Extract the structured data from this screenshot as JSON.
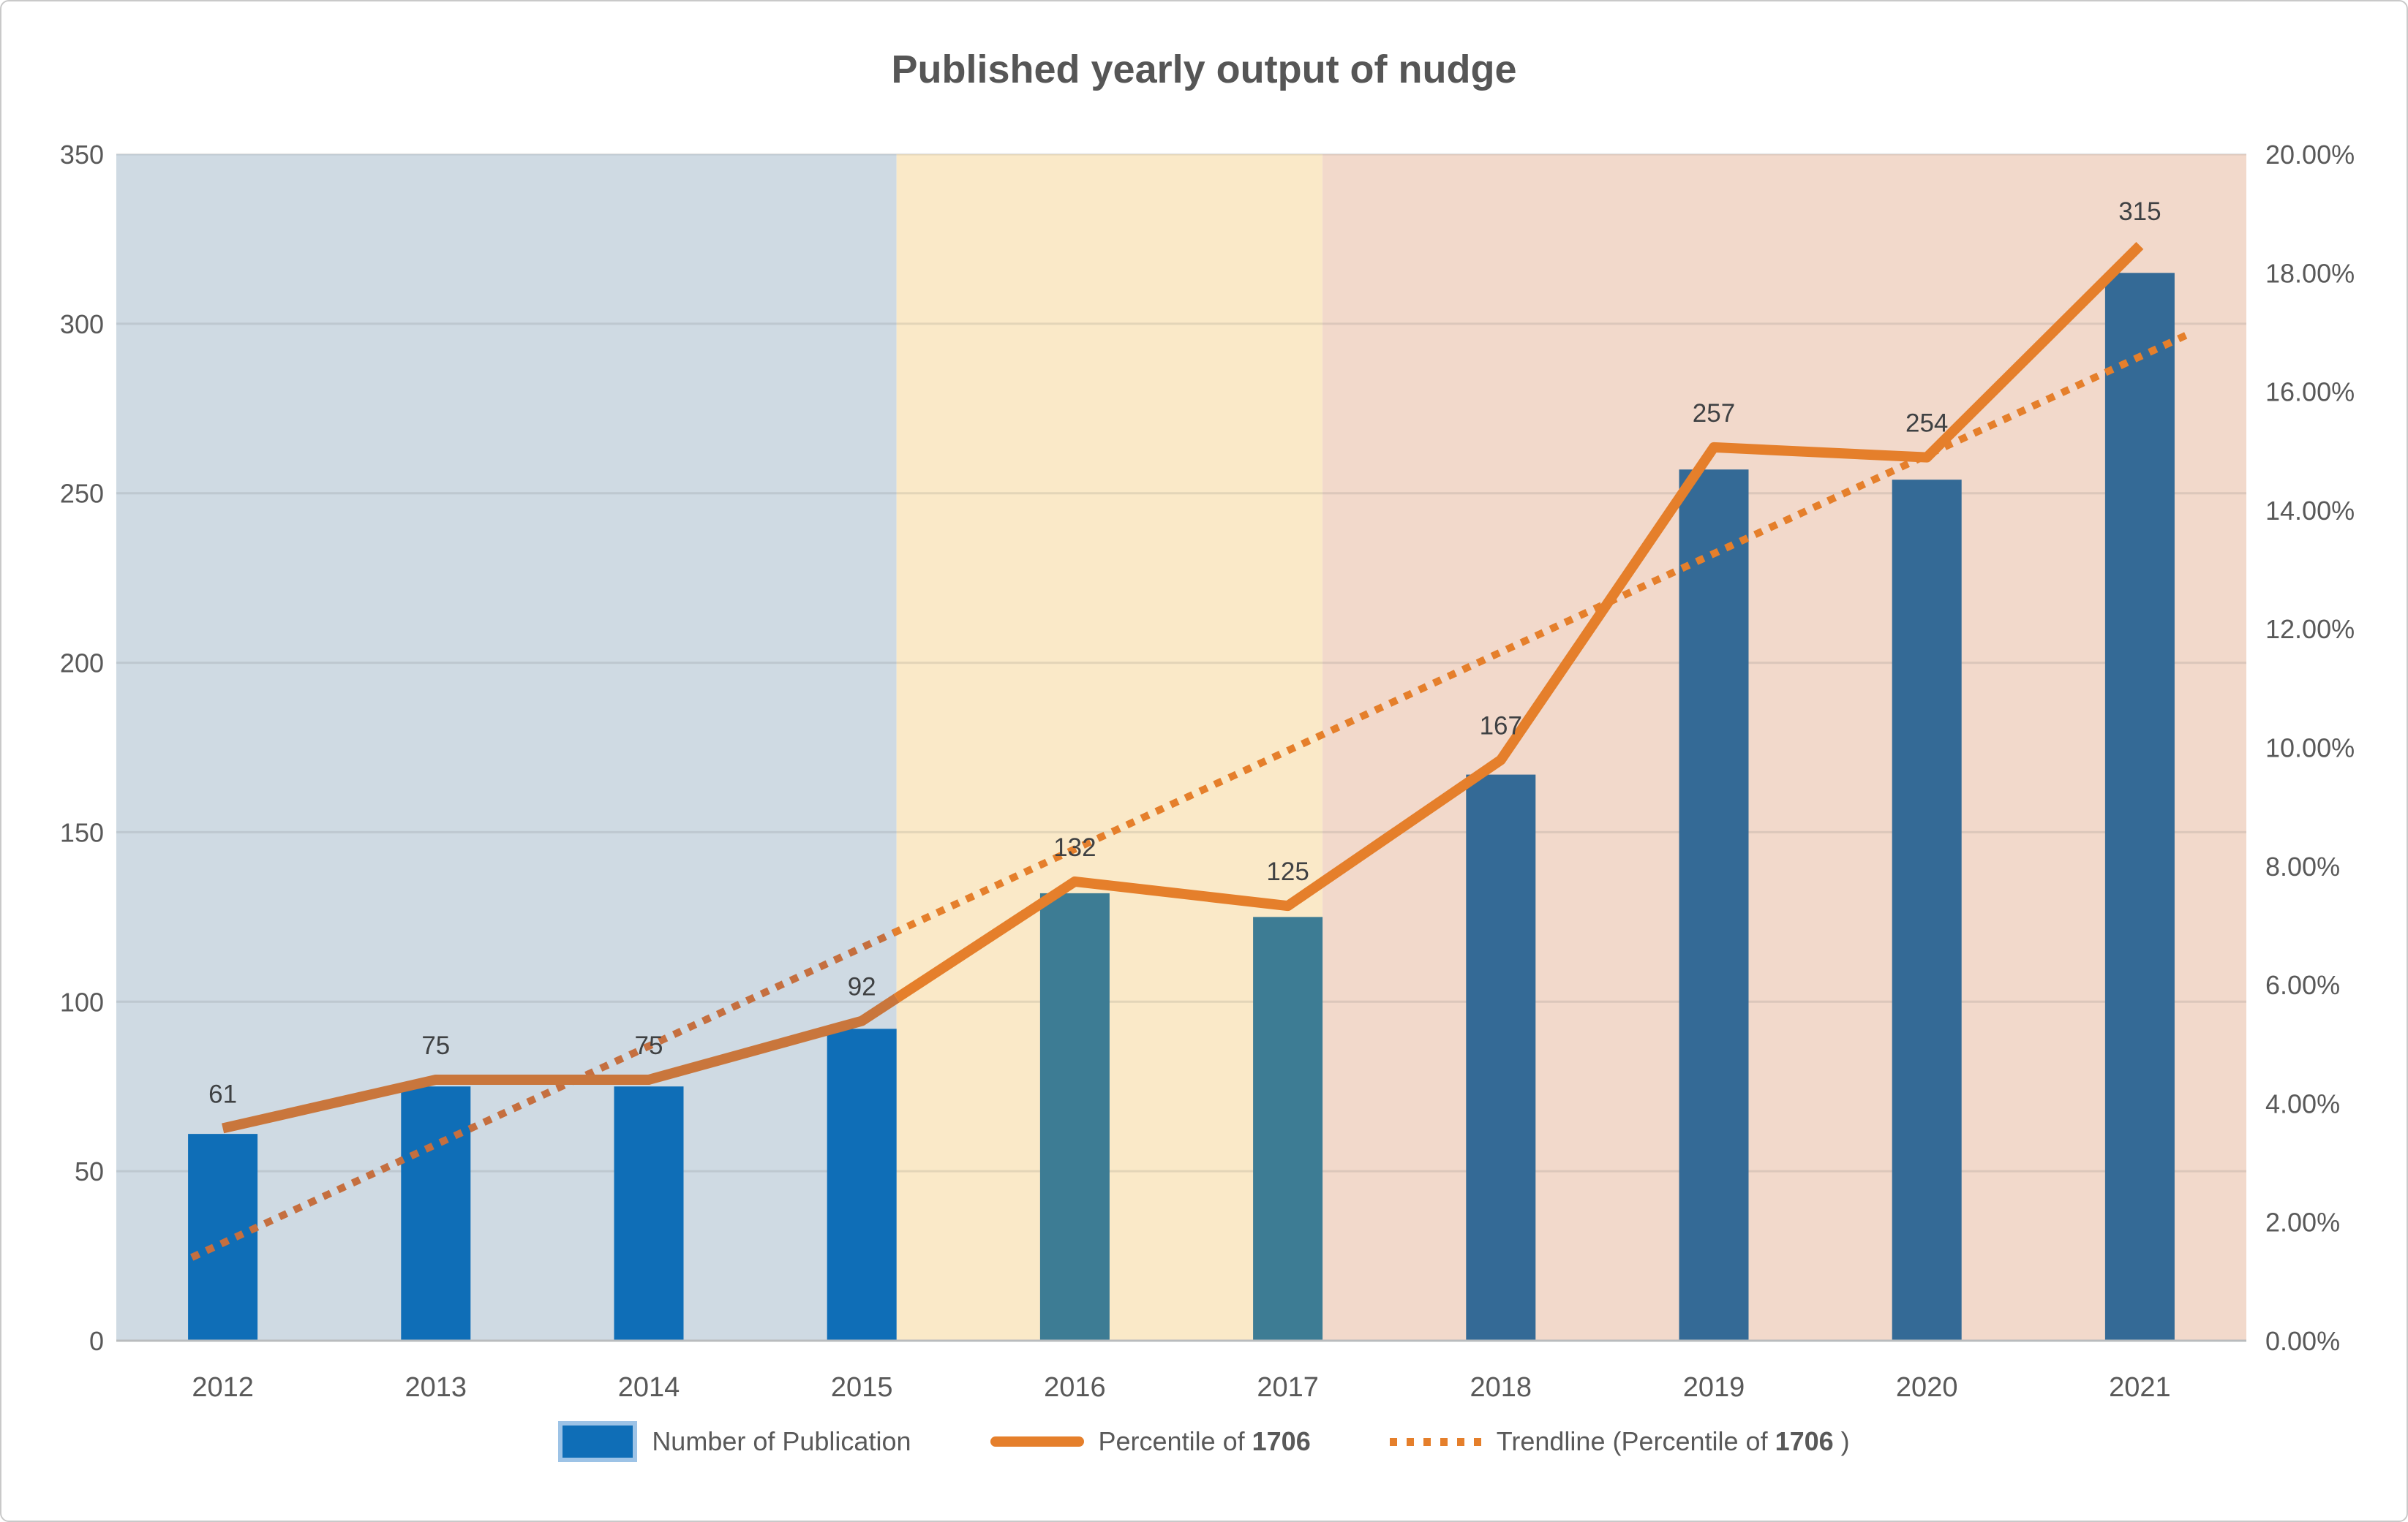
{
  "title": "Published yearly output of nudge",
  "legend": {
    "items": [
      {
        "label": "Number of Publication"
      },
      {
        "prefix": "Percentile of ",
        "bold": "1706",
        "suffix": ""
      },
      {
        "prefix": "Trendline (Percentile of ",
        "bold": "1706",
        "suffix": " )"
      }
    ]
  },
  "chart_data": {
    "type": "combo-bar-line",
    "title": "Published yearly output of nudge",
    "categories": [
      "2012",
      "2013",
      "2014",
      "2015",
      "2016",
      "2017",
      "2018",
      "2019",
      "2020",
      "2021"
    ],
    "series": [
      {
        "name": "Number of Publication",
        "type": "bar",
        "axis": "left",
        "values": [
          61,
          75,
          75,
          92,
          132,
          125,
          167,
          257,
          254,
          315
        ]
      },
      {
        "name": "Percentile of 1706",
        "type": "line",
        "axis": "right",
        "values_pct": [
          3.58,
          4.4,
          4.4,
          5.39,
          7.74,
          7.33,
          9.79,
          15.06,
          14.89,
          18.46
        ]
      },
      {
        "name": "Trendline (Percentile of 1706 )",
        "type": "trendline-dotted",
        "axis": "right",
        "start_slot": -0.13,
        "start_pct": 1.43,
        "end_slot": 9.2,
        "end_pct": 16.92
      }
    ],
    "bar_value_labels": [
      "61",
      "75",
      "75",
      "92",
      "132",
      "125",
      "167",
      "257",
      "254",
      "315"
    ],
    "left_axis": {
      "min": 0,
      "max": 350,
      "step": 50,
      "ticks": [
        "350",
        "300",
        "250",
        "200",
        "150",
        "100",
        "50",
        "0"
      ]
    },
    "right_axis": {
      "min": 0,
      "max": 20,
      "ticks": [
        "20.00%",
        "18.00%",
        "16.00%",
        "14.00%",
        "12.00%",
        "10.00%",
        "8.00%",
        "6.00%",
        "4.00%",
        "2.00%",
        "0.00%"
      ]
    },
    "bands": [
      {
        "name": "era-2012-2015",
        "from": 0,
        "to": 3,
        "color": "#cfdae3"
      },
      {
        "name": "era-2016-2017",
        "from": 4,
        "to": 5,
        "color": "#fae9c8"
      },
      {
        "name": "era-2018-2021",
        "from": 6,
        "to": 9,
        "color": "#f2d9cb"
      }
    ],
    "colors": {
      "bar_colors": [
        "#0f6eb7",
        "#0f6eb7",
        "#0f6eb7",
        "#0f6eb7",
        "#3d7c94",
        "#3d7c94",
        "#346a96",
        "#346a96",
        "#346a96",
        "#346a96"
      ],
      "line_solid": "#e57f2b",
      "line_solid_shaded": "#c9763c",
      "trend": "#e57f2b",
      "trend_shaded": "#c56f3f",
      "gridline": "rgba(90,90,90,0.14)",
      "axis_line": "#b9bcbe",
      "axis_text": "#595959",
      "value_text": "#3f4143",
      "legend_swatch_border": "#9dc3e6"
    },
    "legend_position": "bottom",
    "grid": "horizontal"
  }
}
